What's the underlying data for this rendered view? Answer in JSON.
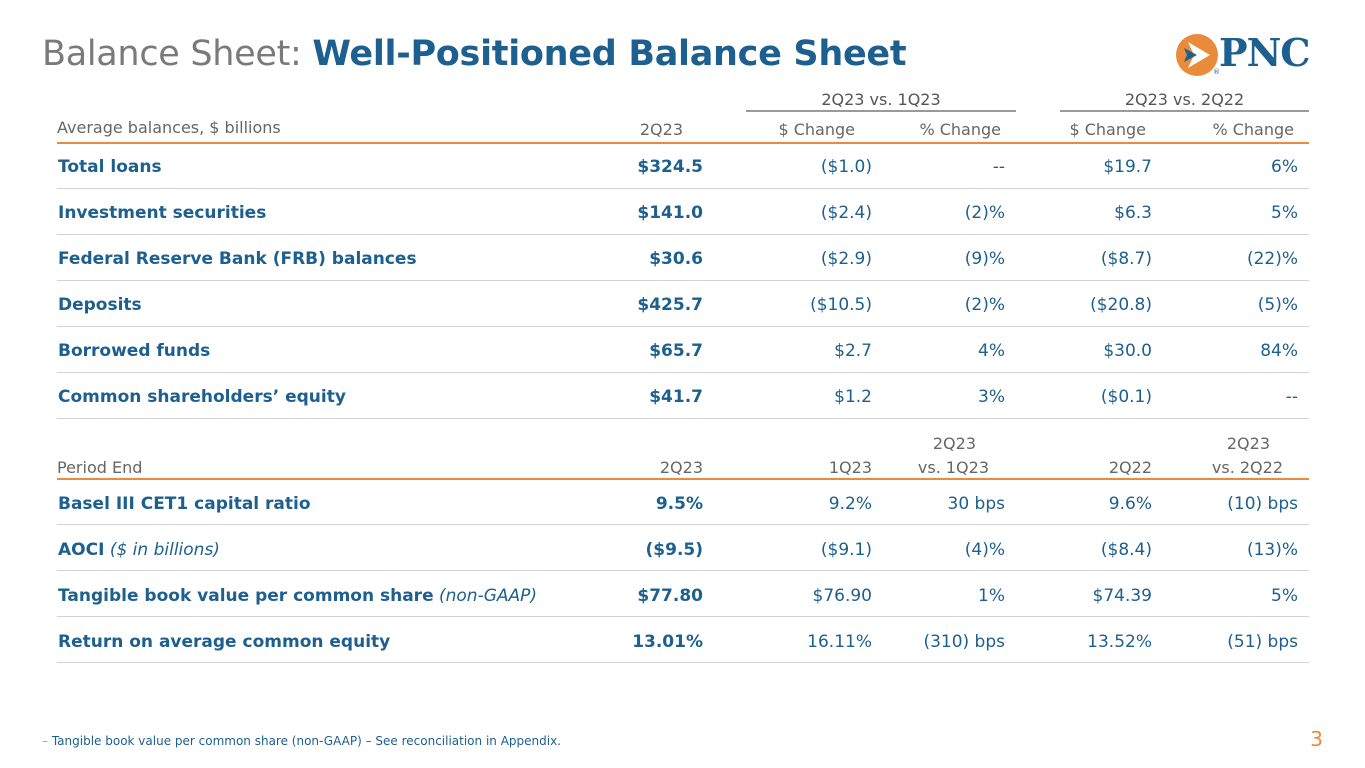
{
  "title": {
    "prefix": "Balance Sheet:",
    "main": "Well-Positioned Balance Sheet"
  },
  "logo": {
    "text": "PNC",
    "mark": "®",
    "icon": "pnc-arrow-icon",
    "colors": {
      "orange": "#e98b3a",
      "blue": "#1d5f8e"
    }
  },
  "top_table": {
    "group_headers": [
      "2Q23 vs. 1Q23",
      "2Q23 vs. 2Q22"
    ],
    "label_header": "Average balances, $ billions",
    "columns": [
      "2Q23",
      "$ Change",
      "% Change",
      "$ Change",
      "% Change"
    ],
    "rows": [
      {
        "label": "Total loans",
        "values": [
          "$324.5",
          "($1.0)",
          "--",
          "$19.7",
          "6%"
        ]
      },
      {
        "label": "Investment securities",
        "values": [
          "$141.0",
          "($2.4)",
          "(2)%",
          "$6.3",
          "5%"
        ]
      },
      {
        "label": "Federal Reserve Bank (FRB) balances",
        "values": [
          "$30.6",
          "($2.9)",
          "(9)%",
          "($8.7)",
          "(22)%"
        ]
      },
      {
        "label": "Deposits",
        "values": [
          "$425.7",
          "($10.5)",
          "(2)%",
          "($20.8)",
          "(5)%"
        ]
      },
      {
        "label": "Borrowed funds",
        "values": [
          "$65.7",
          "$2.7",
          "4%",
          "$30.0",
          "84%"
        ]
      },
      {
        "label": "Common shareholders’ equity",
        "values": [
          "$41.7",
          "$1.2",
          "3%",
          "($0.1)",
          "--"
        ]
      }
    ]
  },
  "bottom_table": {
    "label_header": "Period End",
    "columns": [
      {
        "line1": "",
        "line2": "2Q23"
      },
      {
        "line1": "",
        "line2": "1Q23"
      },
      {
        "line1": "2Q23",
        "line2": "vs. 1Q23"
      },
      {
        "line1": "",
        "line2": "2Q22"
      },
      {
        "line1": "2Q23",
        "line2": "vs. 2Q22"
      }
    ],
    "rows": [
      {
        "label": "Basel III CET1 capital ratio",
        "note": "",
        "values": [
          "9.5%",
          "9.2%",
          "30 bps",
          "9.6%",
          "(10) bps"
        ]
      },
      {
        "label": "AOCI",
        "note": " ($ in billions)",
        "values": [
          "($9.5)",
          "($9.1)",
          "(4)%",
          "($8.4)",
          "(13)%"
        ]
      },
      {
        "label": "Tangible book value per common share",
        "note": " (non-GAAP)",
        "values": [
          "$77.80",
          "$76.90",
          "1%",
          "$74.39",
          "5%"
        ]
      },
      {
        "label": "Return on average common equity",
        "note": "",
        "values": [
          "13.01%",
          "16.11%",
          "(310) bps",
          "13.52%",
          "(51) bps"
        ]
      }
    ]
  },
  "footnote": {
    "bullet": "–",
    "text": "Tangible book value per common share (non-GAAP) – See reconciliation in Appendix."
  },
  "page_number": "3"
}
